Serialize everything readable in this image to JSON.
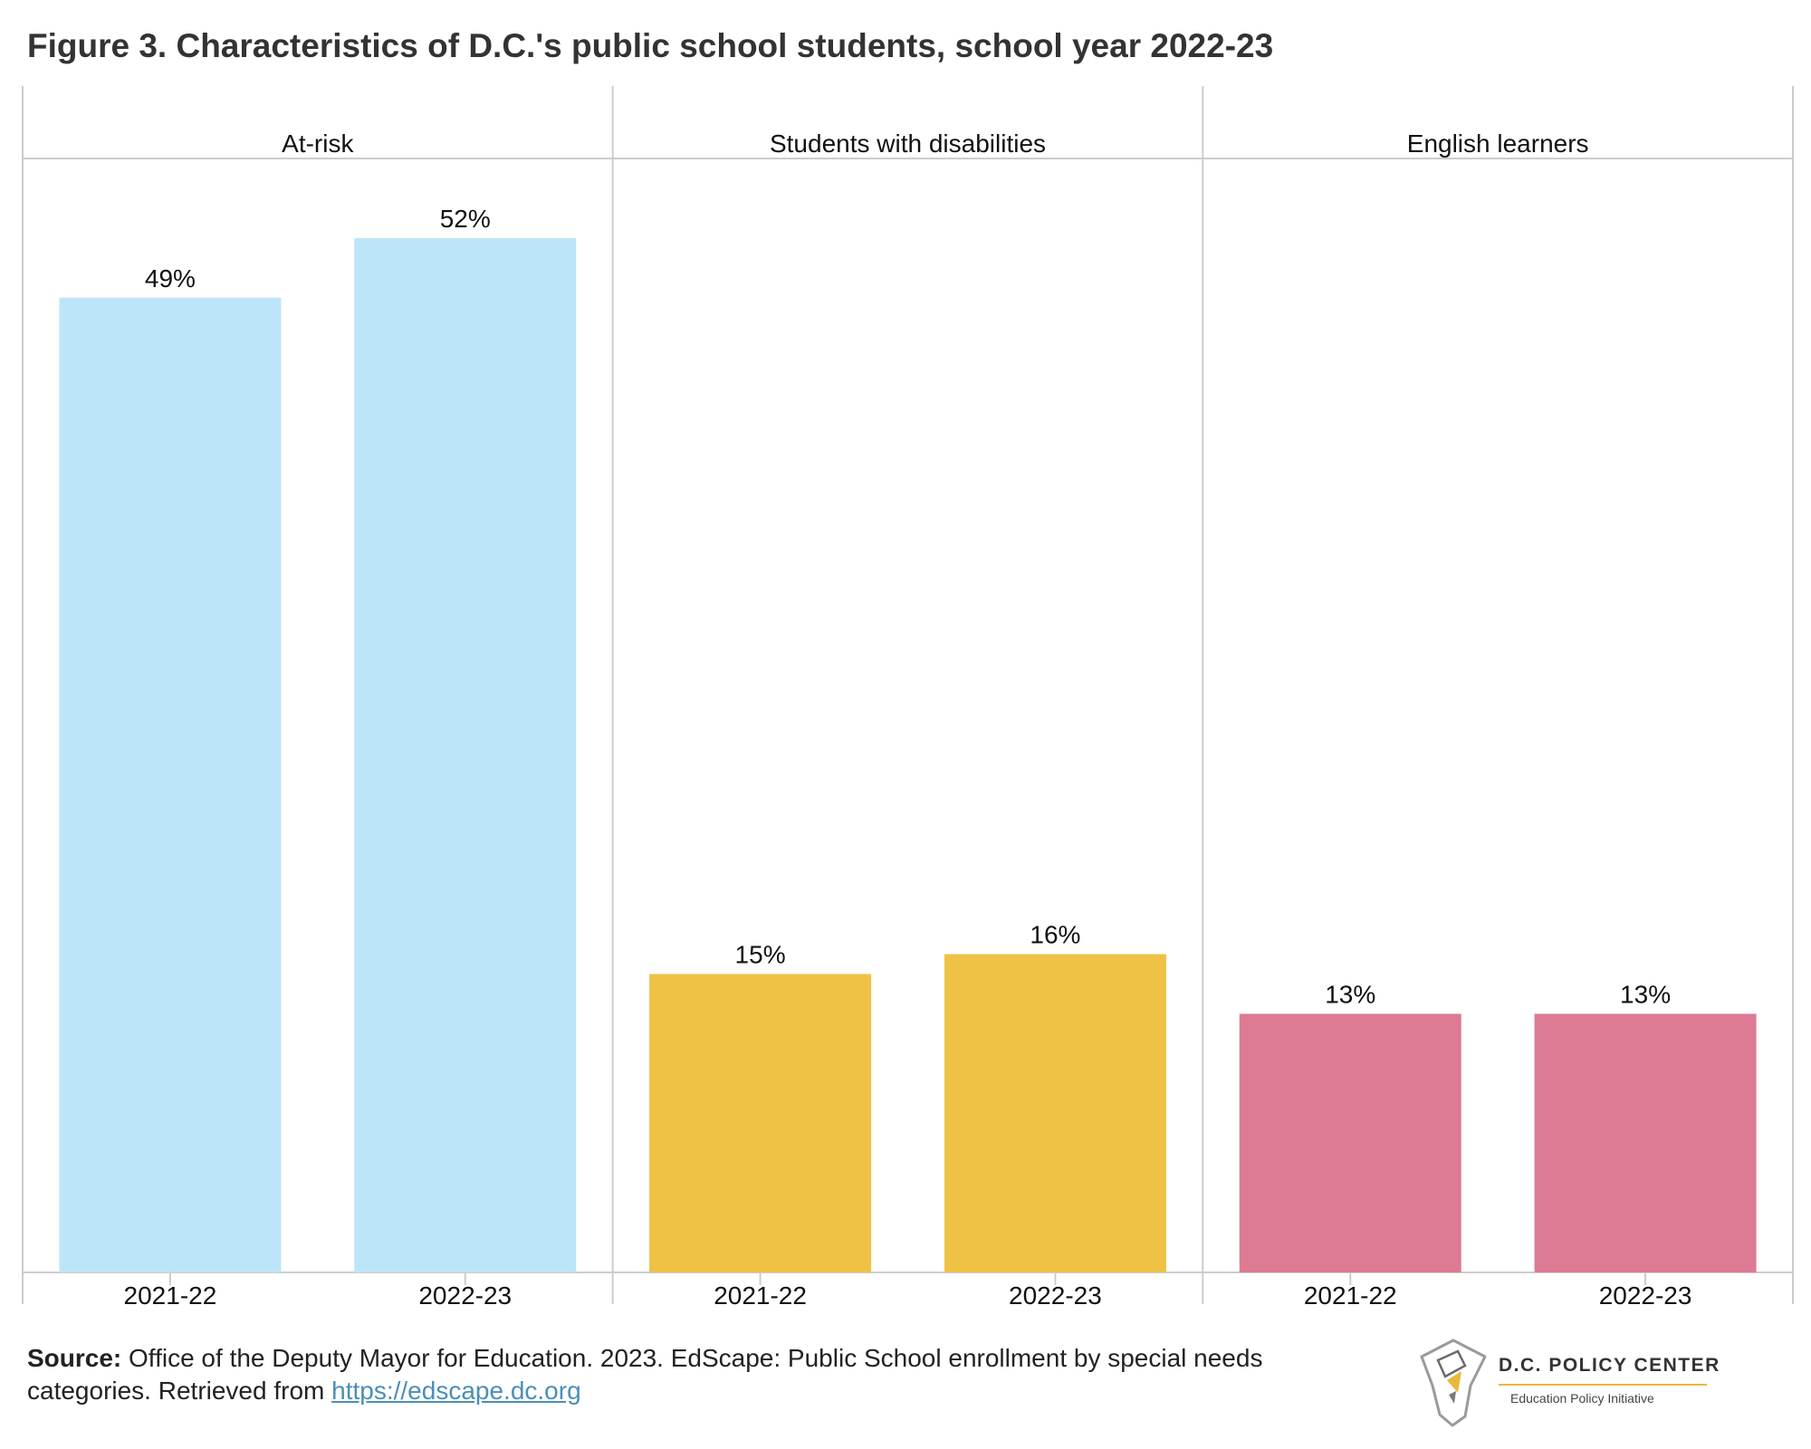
{
  "title": "Figure 3. Characteristics of D.C.'s public school students, school year 2022-23",
  "colors": {
    "at_risk": "#bde5f8",
    "disabilities": "#efc246",
    "english_learners": "#dc7b93",
    "grid": "#cccccc",
    "link": "#4a8fb8"
  },
  "chart_data": {
    "type": "bar",
    "categories": [
      "2021-22",
      "2022-23"
    ],
    "panels": [
      {
        "name": "At-risk",
        "values": [
          49,
          52
        ],
        "labels": [
          "49%",
          "52%"
        ],
        "color": "#bde5f8"
      },
      {
        "name": "Students with disabilities",
        "values": [
          15,
          16
        ],
        "labels": [
          "15%",
          "16%"
        ],
        "color": "#efc246"
      },
      {
        "name": "English learners",
        "values": [
          13,
          13
        ],
        "labels": [
          "13%",
          "13%"
        ],
        "color": "#dc7b93"
      }
    ],
    "ylim": [
      0,
      56
    ],
    "grid": false
  },
  "footer": {
    "source_label": "Source:",
    "source_text": " Office of the Deputy Mayor for Education. 2023. EdScape: Public School enrollment by special needs categories. Retrieved from ",
    "link": "https://edscape.dc.org"
  },
  "logo": {
    "name": "D.C. POLICY CENTER",
    "subtitle": "Education Policy Initiative",
    "icon": "dc-map-pen-icon"
  }
}
